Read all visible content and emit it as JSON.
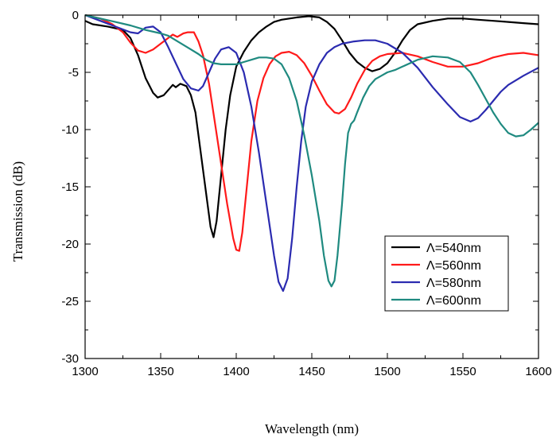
{
  "chart_data": {
    "type": "line",
    "title": "",
    "xlabel": "Wavelength (nm)",
    "ylabel": "Transmission (dB)",
    "xlim": [
      1300,
      1600
    ],
    "ylim": [
      -30,
      0
    ],
    "xticks": [
      1300,
      1350,
      1400,
      1450,
      1500,
      1550,
      1600
    ],
    "yticks": [
      0,
      -5,
      -10,
      -15,
      -20,
      -25,
      -30
    ],
    "grid": false,
    "legend_position": "lower-right",
    "series": [
      {
        "name": "Λ=540nm",
        "color": "#000000",
        "points": [
          [
            1300,
            -0.5
          ],
          [
            1305,
            -0.8
          ],
          [
            1315,
            -1.0
          ],
          [
            1325,
            -1.3
          ],
          [
            1330,
            -2.0
          ],
          [
            1335,
            -3.5
          ],
          [
            1340,
            -5.5
          ],
          [
            1345,
            -6.8
          ],
          [
            1348,
            -7.2
          ],
          [
            1352,
            -7.0
          ],
          [
            1356,
            -6.4
          ],
          [
            1358,
            -6.1
          ],
          [
            1360,
            -6.3
          ],
          [
            1363,
            -6.0
          ],
          [
            1367,
            -6.2
          ],
          [
            1370,
            -7.0
          ],
          [
            1373,
            -8.5
          ],
          [
            1376,
            -11.5
          ],
          [
            1380,
            -15.5
          ],
          [
            1383,
            -18.5
          ],
          [
            1385,
            -19.4
          ],
          [
            1387,
            -18.0
          ],
          [
            1390,
            -14.0
          ],
          [
            1393,
            -10.0
          ],
          [
            1396,
            -7.0
          ],
          [
            1400,
            -4.5
          ],
          [
            1405,
            -3.2
          ],
          [
            1410,
            -2.2
          ],
          [
            1415,
            -1.5
          ],
          [
            1420,
            -1.0
          ],
          [
            1425,
            -0.6
          ],
          [
            1430,
            -0.4
          ],
          [
            1440,
            -0.2
          ],
          [
            1448,
            -0.1
          ],
          [
            1455,
            -0.2
          ],
          [
            1460,
            -0.6
          ],
          [
            1465,
            -1.2
          ],
          [
            1470,
            -2.2
          ],
          [
            1475,
            -3.3
          ],
          [
            1480,
            -4.1
          ],
          [
            1485,
            -4.6
          ],
          [
            1490,
            -4.9
          ],
          [
            1495,
            -4.7
          ],
          [
            1500,
            -4.2
          ],
          [
            1505,
            -3.3
          ],
          [
            1510,
            -2.2
          ],
          [
            1515,
            -1.3
          ],
          [
            1520,
            -0.8
          ],
          [
            1530,
            -0.5
          ],
          [
            1540,
            -0.3
          ],
          [
            1550,
            -0.3
          ],
          [
            1560,
            -0.4
          ],
          [
            1570,
            -0.5
          ],
          [
            1580,
            -0.6
          ],
          [
            1590,
            -0.7
          ],
          [
            1600,
            -0.8
          ]
        ]
      },
      {
        "name": "Λ=560nm",
        "color": "#ff1a1a",
        "points": [
          [
            1300,
            0
          ],
          [
            1310,
            -0.3
          ],
          [
            1318,
            -0.8
          ],
          [
            1325,
            -1.5
          ],
          [
            1330,
            -2.4
          ],
          [
            1335,
            -3.1
          ],
          [
            1340,
            -3.3
          ],
          [
            1345,
            -3.0
          ],
          [
            1350,
            -2.5
          ],
          [
            1355,
            -2.0
          ],
          [
            1358,
            -1.7
          ],
          [
            1361,
            -1.9
          ],
          [
            1365,
            -1.6
          ],
          [
            1368,
            -1.5
          ],
          [
            1372,
            -1.5
          ],
          [
            1375,
            -2.3
          ],
          [
            1378,
            -3.5
          ],
          [
            1382,
            -6.0
          ],
          [
            1386,
            -9.5
          ],
          [
            1390,
            -13.0
          ],
          [
            1394,
            -16.5
          ],
          [
            1398,
            -19.5
          ],
          [
            1400,
            -20.5
          ],
          [
            1402,
            -20.6
          ],
          [
            1404,
            -19.0
          ],
          [
            1407,
            -15.0
          ],
          [
            1410,
            -11.0
          ],
          [
            1414,
            -7.5
          ],
          [
            1418,
            -5.5
          ],
          [
            1422,
            -4.3
          ],
          [
            1426,
            -3.6
          ],
          [
            1430,
            -3.3
          ],
          [
            1435,
            -3.2
          ],
          [
            1440,
            -3.5
          ],
          [
            1445,
            -4.2
          ],
          [
            1450,
            -5.3
          ],
          [
            1455,
            -6.6
          ],
          [
            1460,
            -7.8
          ],
          [
            1465,
            -8.5
          ],
          [
            1468,
            -8.6
          ],
          [
            1472,
            -8.2
          ],
          [
            1476,
            -7.2
          ],
          [
            1480,
            -6.0
          ],
          [
            1485,
            -4.8
          ],
          [
            1490,
            -4.0
          ],
          [
            1495,
            -3.6
          ],
          [
            1500,
            -3.4
          ],
          [
            1510,
            -3.3
          ],
          [
            1520,
            -3.6
          ],
          [
            1530,
            -4.1
          ],
          [
            1540,
            -4.5
          ],
          [
            1550,
            -4.5
          ],
          [
            1560,
            -4.2
          ],
          [
            1570,
            -3.7
          ],
          [
            1580,
            -3.4
          ],
          [
            1590,
            -3.3
          ],
          [
            1600,
            -3.5
          ]
        ]
      },
      {
        "name": "Λ=580nm",
        "color": "#2b2bb0",
        "points": [
          [
            1300,
            0
          ],
          [
            1310,
            -0.5
          ],
          [
            1320,
            -1.0
          ],
          [
            1330,
            -1.5
          ],
          [
            1335,
            -1.6
          ],
          [
            1340,
            -1.1
          ],
          [
            1345,
            -1.0
          ],
          [
            1350,
            -1.5
          ],
          [
            1355,
            -2.8
          ],
          [
            1360,
            -4.2
          ],
          [
            1365,
            -5.6
          ],
          [
            1370,
            -6.4
          ],
          [
            1375,
            -6.6
          ],
          [
            1378,
            -6.2
          ],
          [
            1382,
            -5.0
          ],
          [
            1386,
            -3.8
          ],
          [
            1390,
            -3.0
          ],
          [
            1395,
            -2.8
          ],
          [
            1400,
            -3.3
          ],
          [
            1405,
            -5.0
          ],
          [
            1410,
            -8.0
          ],
          [
            1415,
            -12.0
          ],
          [
            1420,
            -16.5
          ],
          [
            1425,
            -21.0
          ],
          [
            1428,
            -23.3
          ],
          [
            1431,
            -24.1
          ],
          [
            1434,
            -23.0
          ],
          [
            1437,
            -19.5
          ],
          [
            1440,
            -15.0
          ],
          [
            1443,
            -11.0
          ],
          [
            1446,
            -8.0
          ],
          [
            1450,
            -5.8
          ],
          [
            1455,
            -4.3
          ],
          [
            1460,
            -3.3
          ],
          [
            1465,
            -2.8
          ],
          [
            1470,
            -2.5
          ],
          [
            1478,
            -2.3
          ],
          [
            1485,
            -2.2
          ],
          [
            1492,
            -2.2
          ],
          [
            1500,
            -2.5
          ],
          [
            1510,
            -3.3
          ],
          [
            1520,
            -4.6
          ],
          [
            1530,
            -6.3
          ],
          [
            1540,
            -7.8
          ],
          [
            1548,
            -8.9
          ],
          [
            1555,
            -9.3
          ],
          [
            1560,
            -9.0
          ],
          [
            1565,
            -8.3
          ],
          [
            1570,
            -7.5
          ],
          [
            1575,
            -6.7
          ],
          [
            1580,
            -6.1
          ],
          [
            1590,
            -5.3
          ],
          [
            1600,
            -4.6
          ]
        ]
      },
      {
        "name": "Λ=600nm",
        "color": "#1f8a80",
        "points": [
          [
            1300,
            0
          ],
          [
            1310,
            -0.3
          ],
          [
            1320,
            -0.6
          ],
          [
            1330,
            -0.9
          ],
          [
            1340,
            -1.3
          ],
          [
            1350,
            -1.6
          ],
          [
            1355,
            -1.8
          ],
          [
            1360,
            -2.2
          ],
          [
            1365,
            -2.6
          ],
          [
            1370,
            -3.0
          ],
          [
            1375,
            -3.4
          ],
          [
            1380,
            -3.9
          ],
          [
            1385,
            -4.2
          ],
          [
            1390,
            -4.3
          ],
          [
            1395,
            -4.3
          ],
          [
            1400,
            -4.3
          ],
          [
            1405,
            -4.1
          ],
          [
            1410,
            -3.9
          ],
          [
            1415,
            -3.7
          ],
          [
            1420,
            -3.7
          ],
          [
            1425,
            -3.8
          ],
          [
            1430,
            -4.3
          ],
          [
            1435,
            -5.5
          ],
          [
            1440,
            -7.5
          ],
          [
            1445,
            -10.5
          ],
          [
            1450,
            -14.0
          ],
          [
            1455,
            -18.0
          ],
          [
            1458,
            -21.0
          ],
          [
            1461,
            -23.2
          ],
          [
            1463,
            -23.7
          ],
          [
            1465,
            -23.2
          ],
          [
            1467,
            -21.0
          ],
          [
            1470,
            -16.5
          ],
          [
            1472,
            -13.0
          ],
          [
            1474,
            -10.3
          ],
          [
            1476,
            -9.5
          ],
          [
            1478,
            -9.2
          ],
          [
            1480,
            -8.5
          ],
          [
            1484,
            -7.2
          ],
          [
            1488,
            -6.2
          ],
          [
            1492,
            -5.6
          ],
          [
            1496,
            -5.3
          ],
          [
            1500,
            -5.0
          ],
          [
            1505,
            -4.8
          ],
          [
            1510,
            -4.5
          ],
          [
            1515,
            -4.2
          ],
          [
            1520,
            -3.9
          ],
          [
            1530,
            -3.6
          ],
          [
            1540,
            -3.7
          ],
          [
            1548,
            -4.1
          ],
          [
            1555,
            -5.0
          ],
          [
            1560,
            -6.1
          ],
          [
            1565,
            -7.3
          ],
          [
            1570,
            -8.5
          ],
          [
            1575,
            -9.5
          ],
          [
            1580,
            -10.3
          ],
          [
            1585,
            -10.6
          ],
          [
            1590,
            -10.5
          ],
          [
            1595,
            -10.0
          ],
          [
            1600,
            -9.4
          ]
        ]
      }
    ]
  }
}
